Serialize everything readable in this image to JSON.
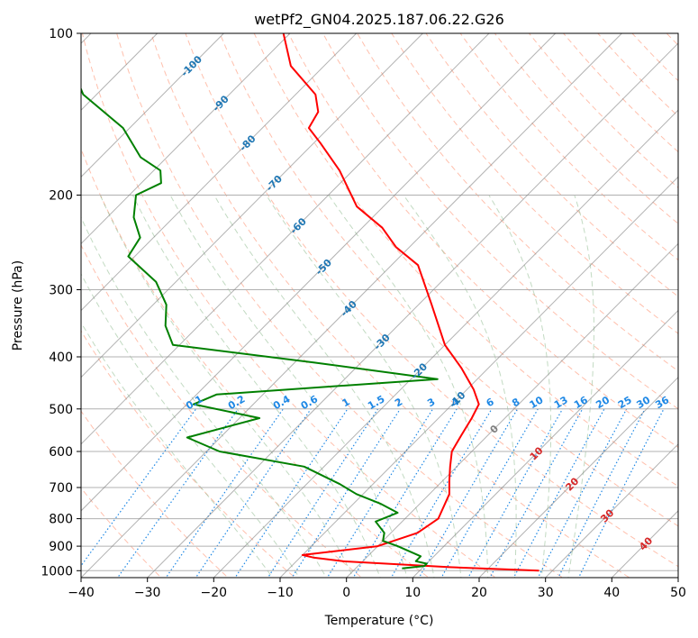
{
  "chart_data": {
    "type": "line",
    "title": "wetPf2_GN04.2025.187.06.22.G26",
    "xlabel": "Temperature (°C)",
    "ylabel": "Pressure (hPa)",
    "xlim": [
      -40,
      50
    ],
    "ylim": [
      1030,
      100
    ],
    "y_scale": "log",
    "grid": true,
    "x_ticks": [
      -40,
      -30,
      -20,
      -10,
      0,
      10,
      20,
      30,
      40,
      50
    ],
    "y_ticks": [
      100,
      200,
      300,
      400,
      500,
      600,
      700,
      800,
      900,
      1000
    ],
    "series": [
      {
        "color": "#ff0000",
        "points": [
          [
            28,
            1000
          ],
          [
            14,
            985
          ],
          [
            -3,
            960
          ],
          [
            -8,
            945
          ],
          [
            -10,
            935
          ],
          [
            0,
            900
          ],
          [
            4,
            850
          ],
          [
            5,
            800
          ],
          [
            3,
            720
          ],
          [
            1,
            680
          ],
          [
            -1,
            640
          ],
          [
            -3,
            600
          ],
          [
            -4,
            560
          ],
          [
            -5,
            520
          ],
          [
            -6,
            490
          ],
          [
            -9,
            460
          ],
          [
            -14,
            420
          ],
          [
            -20,
            380
          ],
          [
            -28,
            320
          ],
          [
            -36,
            270
          ],
          [
            -42,
            250
          ],
          [
            -47,
            230
          ],
          [
            -54,
            210
          ],
          [
            -62,
            180
          ],
          [
            -69,
            160
          ],
          [
            -73,
            150
          ],
          [
            -74,
            140
          ],
          [
            -77,
            130
          ],
          [
            -85,
            115
          ],
          [
            -91,
            100
          ]
        ]
      },
      {
        "color": "#008000",
        "points": [
          [
            7,
            990
          ],
          [
            10,
            980
          ],
          [
            10,
            970
          ],
          [
            8,
            960
          ],
          [
            8,
            940
          ],
          [
            3,
            900
          ],
          [
            0,
            880
          ],
          [
            -1,
            850
          ],
          [
            -4,
            810
          ],
          [
            -2,
            780
          ],
          [
            -6,
            750
          ],
          [
            -11,
            720
          ],
          [
            -15,
            690
          ],
          [
            -23,
            640
          ],
          [
            -38,
            600
          ],
          [
            -45,
            565
          ],
          [
            -37,
            520
          ],
          [
            -49,
            490
          ],
          [
            -47,
            470
          ],
          [
            -16,
            440
          ],
          [
            -37,
            410
          ],
          [
            -61,
            380
          ],
          [
            -65,
            350
          ],
          [
            -68,
            320
          ],
          [
            -73,
            290
          ],
          [
            -81,
            260
          ],
          [
            -82,
            240
          ],
          [
            -86,
            220
          ],
          [
            -89,
            200
          ],
          [
            -87,
            190
          ],
          [
            -89,
            180
          ],
          [
            -94,
            170
          ],
          [
            -101,
            150
          ],
          [
            -112,
            130
          ],
          [
            -125,
            100
          ]
        ]
      }
    ],
    "line_styles": {
      "isotherm_color": "#7f7f7f",
      "dry_adiabat_color": "#ff8c69",
      "moist_adiabat_color": "#8fbc8f",
      "mixing_ratio_color": "#1e88e5"
    },
    "mixing_ratio_labels": [
      "0.1",
      "0.2",
      "0.4",
      "0.6",
      "1",
      "1.5",
      "2",
      "3",
      "4",
      "6",
      "8",
      "10",
      "13",
      "16",
      "20",
      "25",
      "30",
      "36"
    ],
    "isotherm_labels": [
      "-100",
      "-90",
      "-80",
      "-70",
      "-60",
      "-50",
      "-40",
      "-30",
      "-20",
      "-10",
      "0",
      "10",
      "20",
      "30",
      "40"
    ]
  }
}
